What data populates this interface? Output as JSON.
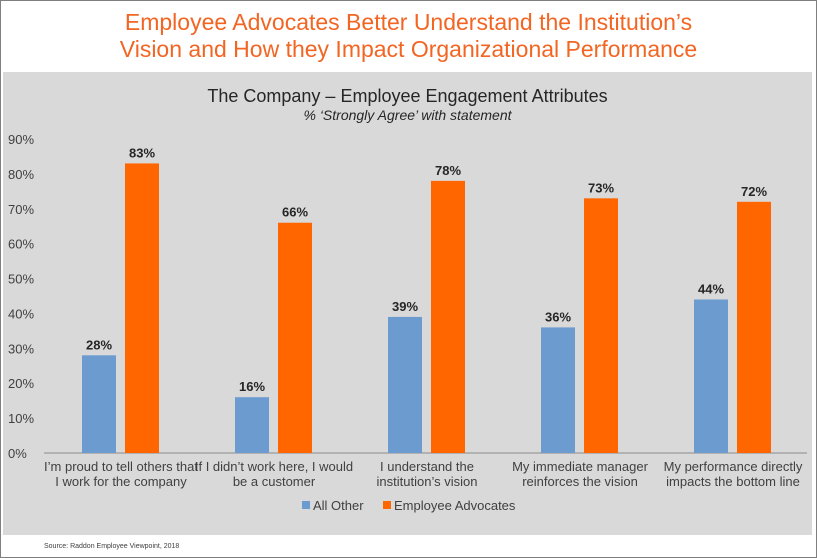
{
  "headline": {
    "line1": "Employee Advocates Better Understand the Institution’s",
    "line2": "Vision and How they Impact Organizational Performance"
  },
  "source": "Source: Raddon Employee Viewpoint, 2018",
  "colors": {
    "headline": "#f26522",
    "panel_background": "#d9d9d9",
    "all_other": "#6c9bcf",
    "employee_advocates": "#ff6600"
  },
  "chart_data": {
    "type": "bar",
    "title": "The Company – Employee Engagement Attributes",
    "subtitle": "% ‘Strongly Agree’ with statement",
    "categories": [
      [
        "I’m proud to tell others that",
        "I work for the company"
      ],
      [
        "If I didn’t work here, I would",
        "be a customer"
      ],
      [
        "I understand the",
        "institution’s vision"
      ],
      [
        "My immediate manager",
        "reinforces the vision"
      ],
      [
        "My performance directly",
        "impacts the bottom line"
      ]
    ],
    "series": [
      {
        "name": "All Other",
        "color": "#6c9bcf",
        "values": [
          28,
          16,
          39,
          36,
          44
        ],
        "labels": [
          "28%",
          "16%",
          "39%",
          "36%",
          "44%"
        ]
      },
      {
        "name": "Employee Advocates",
        "color": "#ff6600",
        "values": [
          83,
          66,
          78,
          73,
          72
        ],
        "labels": [
          "83%",
          "66%",
          "78%",
          "73%",
          "72%"
        ]
      }
    ],
    "yticks": [
      "0%",
      "10%",
      "20%",
      "30%",
      "40%",
      "50%",
      "60%",
      "70%",
      "80%",
      "90%"
    ],
    "ylim": [
      0,
      90
    ],
    "grid": false,
    "legend_position": "bottom"
  }
}
